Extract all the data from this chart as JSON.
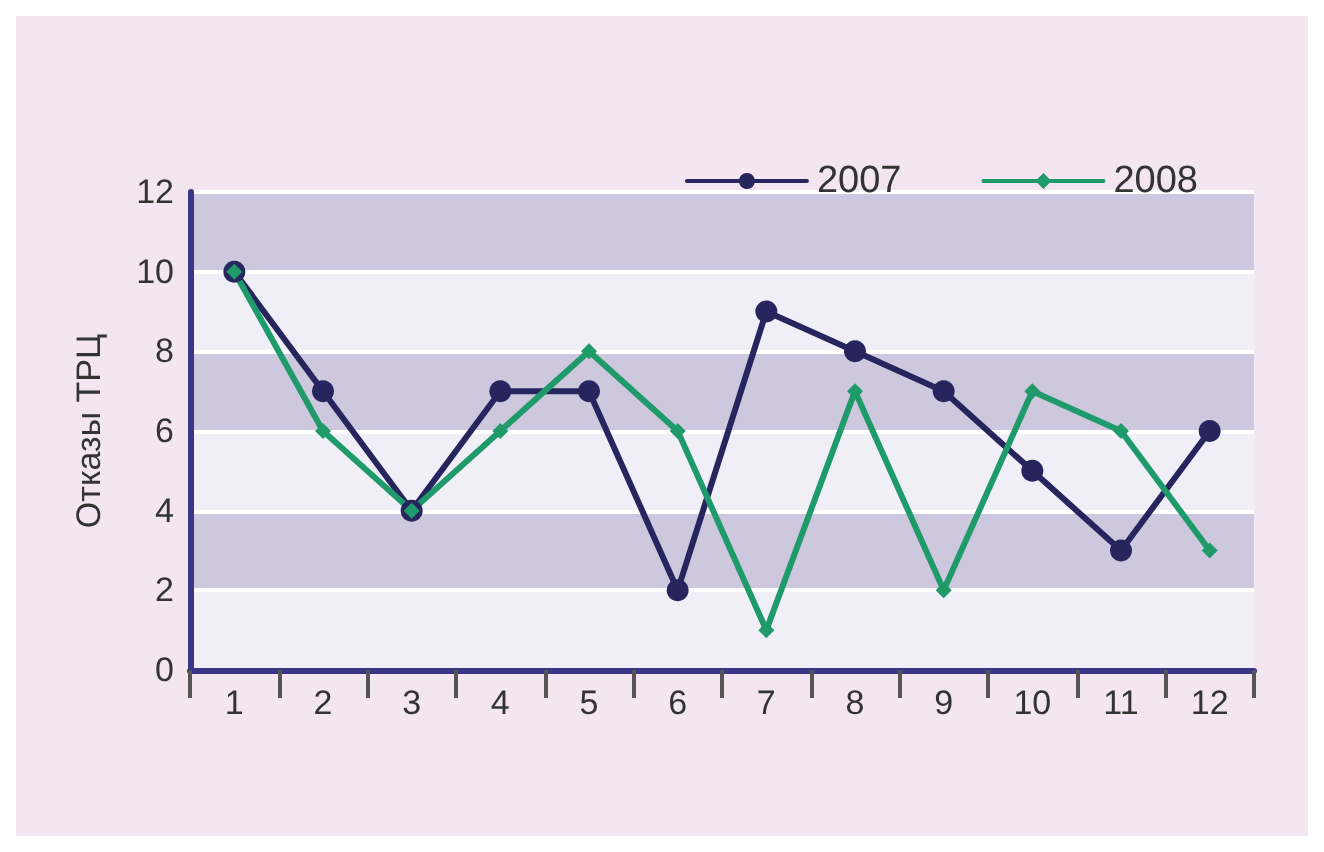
{
  "chart_data": {
    "type": "line",
    "ylabel": "Отказы ТРЦ",
    "categories": [
      "1",
      "2",
      "3",
      "4",
      "5",
      "6",
      "7",
      "8",
      "9",
      "10",
      "11",
      "12"
    ],
    "series": [
      {
        "name": "2007",
        "color": "#27255e",
        "marker": "circle",
        "values": [
          10,
          7,
          4,
          7,
          7,
          2,
          9,
          8,
          7,
          5,
          3,
          6
        ]
      },
      {
        "name": "2008",
        "color": "#1f9a6a",
        "marker": "diamond",
        "values": [
          10,
          6,
          4,
          6,
          8,
          6,
          1,
          7,
          2,
          7,
          6,
          3
        ]
      }
    ],
    "ylim": [
      0,
      12
    ],
    "yticks": [
      0,
      2,
      4,
      6,
      8,
      10,
      12
    ],
    "grid": "y",
    "legend": "top right",
    "line_style": "solid"
  }
}
